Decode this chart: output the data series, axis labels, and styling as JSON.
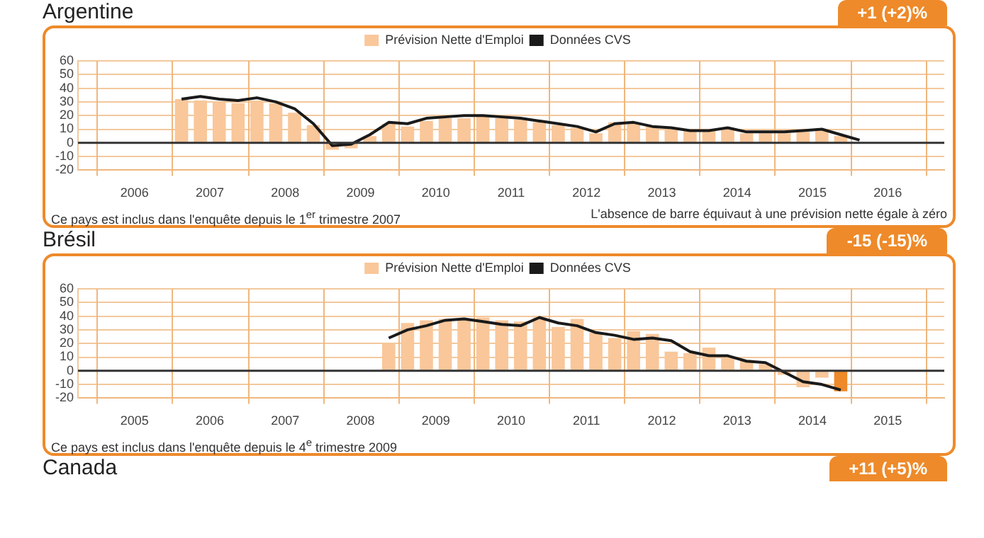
{
  "chart_data": [
    {
      "type": "bar",
      "title": "Argentine",
      "legend": "top",
      "grid": true,
      "ylim": [
        -20,
        60
      ],
      "yticks": [
        -20,
        -10,
        0,
        10,
        20,
        30,
        40,
        50,
        60
      ],
      "xlim": [
        2006,
        2017
      ],
      "xticks": [
        {
          "value": 2006,
          "label": null
        },
        {
          "value": 2006.5,
          "label": "2006"
        },
        {
          "value": 2007,
          "label": null
        },
        {
          "value": 2007.5,
          "label": "2007"
        },
        {
          "value": 2008,
          "label": null
        },
        {
          "value": 2008.5,
          "label": "2008"
        },
        {
          "value": 2009,
          "label": null
        },
        {
          "value": 2009.5,
          "label": "2009"
        },
        {
          "value": 2010,
          "label": null
        },
        {
          "value": 2010.5,
          "label": "2010"
        },
        {
          "value": 2011,
          "label": null
        },
        {
          "value": 2011.5,
          "label": "2011"
        },
        {
          "value": 2012,
          "label": null
        },
        {
          "value": 2012.5,
          "label": "2012"
        },
        {
          "value": 2013,
          "label": null
        },
        {
          "value": 2013.5,
          "label": "2013"
        },
        {
          "value": 2014,
          "label": null
        },
        {
          "value": 2014.5,
          "label": "2014"
        },
        {
          "value": 2015,
          "label": null
        },
        {
          "value": 2015.5,
          "label": "2015"
        },
        {
          "value": 2016,
          "label": null
        },
        {
          "value": 2016.5,
          "label": "2016"
        },
        {
          "value": 2017,
          "label": null
        }
      ],
      "x": [
        2007.125,
        2007.375,
        2007.625,
        2007.875,
        2008.125,
        2008.375,
        2008.625,
        2008.875,
        2009.125,
        2009.375,
        2009.625,
        2009.875,
        2010.125,
        2010.375,
        2010.625,
        2010.875,
        2011.125,
        2011.375,
        2011.625,
        2011.875,
        2012.125,
        2012.375,
        2012.625,
        2012.875,
        2013.125,
        2013.375,
        2013.625,
        2013.875,
        2014.125,
        2014.375,
        2014.625,
        2014.875,
        2015.125,
        2015.375,
        2015.625,
        2015.875,
        2016.125
      ],
      "series": [
        {
          "name": "Prévision Nette d'Emploi",
          "type": "bar",
          "color": "#f9c79a",
          "values": [
            32,
            31,
            30,
            29,
            31,
            29,
            22,
            13,
            -5,
            -4,
            5,
            14,
            12,
            16,
            18,
            18,
            20,
            18,
            17,
            15,
            13,
            11,
            7,
            15,
            14,
            12,
            10,
            9,
            10,
            11,
            7,
            7,
            7,
            8,
            9,
            5,
            null
          ]
        },
        {
          "name": "Données CVS",
          "type": "line",
          "color": "#1a1a1a",
          "values": [
            32,
            34,
            32,
            31,
            33,
            30,
            25,
            14,
            -2,
            -1,
            6,
            15,
            14,
            18,
            19,
            20,
            20,
            19,
            18,
            16,
            14,
            12,
            8,
            14,
            15,
            12,
            11,
            9,
            9,
            11,
            8,
            8,
            8,
            9,
            10,
            6,
            2
          ]
        }
      ],
      "ref_lines": [
        {
          "axis": "y",
          "value": 0,
          "color": "#333333"
        }
      ],
      "annotations": [
        "+1 (+2)%",
        "Ce pays est inclus dans l'enquête depuis le 1$^{er}$ trimestre 2007",
        "L'absence de barre équivaut à une prévision nette égale à zéro"
      ]
    },
    {
      "type": "bar",
      "title": "Brésil",
      "legend": "top",
      "grid": true,
      "ylim": [
        -20,
        60
      ],
      "yticks": [
        -20,
        -10,
        0,
        10,
        20,
        30,
        40,
        50,
        60
      ],
      "xlim": [
        2005,
        2016
      ],
      "xticks": [
        {
          "value": 2005,
          "label": null
        },
        {
          "value": 2005.5,
          "label": "2005"
        },
        {
          "value": 2006,
          "label": null
        },
        {
          "value": 2006.5,
          "label": "2006"
        },
        {
          "value": 2007,
          "label": null
        },
        {
          "value": 2007.5,
          "label": "2007"
        },
        {
          "value": 2008,
          "label": null
        },
        {
          "value": 2008.5,
          "label": "2008"
        },
        {
          "value": 2009,
          "label": null
        },
        {
          "value": 2009.5,
          "label": "2009"
        },
        {
          "value": 2010,
          "label": null
        },
        {
          "value": 2010.5,
          "label": "2010"
        },
        {
          "value": 2011,
          "label": null
        },
        {
          "value": 2011.5,
          "label": "2011"
        },
        {
          "value": 2012,
          "label": null
        },
        {
          "value": 2012.5,
          "label": "2012"
        },
        {
          "value": 2013,
          "label": null
        },
        {
          "value": 2013.5,
          "label": "2013"
        },
        {
          "value": 2014,
          "label": null
        },
        {
          "value": 2014.5,
          "label": "2014"
        },
        {
          "value": 2015,
          "label": null
        },
        {
          "value": 2015.5,
          "label": "2015"
        },
        {
          "value": 2016,
          "label": null
        }
      ],
      "x": [
        2008.875,
        2009.125,
        2009.375,
        2009.625,
        2009.875,
        2010.125,
        2010.375,
        2010.625,
        2010.875,
        2011.125,
        2011.375,
        2011.625,
        2011.875,
        2012.125,
        2012.375,
        2012.625,
        2012.875,
        2013.125,
        2013.375,
        2013.625,
        2013.875,
        2014.125,
        2014.375,
        2014.625,
        2014.875
      ],
      "series": [
        {
          "name": "Prévision Nette d'Emploi",
          "type": "bar",
          "color": "#f9c79a",
          "colors": [
            "#f9c79a",
            "#f9c79a",
            "#f9c79a",
            "#f9c79a",
            "#f9c79a",
            "#f9c79a",
            "#f9c79a",
            "#f9c79a",
            "#f9c79a",
            "#f9c79a",
            "#f9c79a",
            "#f9c79a",
            "#f9c79a",
            "#f9c79a",
            "#f9c79a",
            "#f9c79a",
            "#f9c79a",
            "#f9c79a",
            "#f9c79a",
            "#f9c79a",
            "#f9c79a",
            "#f9c79a",
            "#f9c79a",
            "#f9c79a",
            "#ee8a2a"
          ],
          "values": [
            20,
            35,
            37,
            38,
            37,
            39,
            37,
            36,
            39,
            32,
            38,
            28,
            24,
            29,
            27,
            14,
            13,
            17,
            10,
            8,
            5,
            -3,
            -12,
            -5,
            -15
          ]
        },
        {
          "name": "Données CVS",
          "type": "line",
          "color": "#1a1a1a",
          "values": [
            24,
            30,
            33,
            37,
            38,
            36,
            34,
            33,
            39,
            35,
            33,
            28,
            26,
            23,
            24,
            22,
            14,
            11,
            11,
            7,
            6,
            -1,
            -8,
            -10,
            -14
          ]
        }
      ],
      "ref_lines": [
        {
          "axis": "y",
          "value": 0,
          "color": "#333333"
        }
      ],
      "annotations": [
        "-15 (-15)%",
        "Ce pays est inclus dans l'enquête depuis le 4$^{e}$ trimestre 2009"
      ]
    },
    {
      "type": "other",
      "title": "Canada",
      "annotations": [
        "+11 (+5)%"
      ]
    }
  ]
}
